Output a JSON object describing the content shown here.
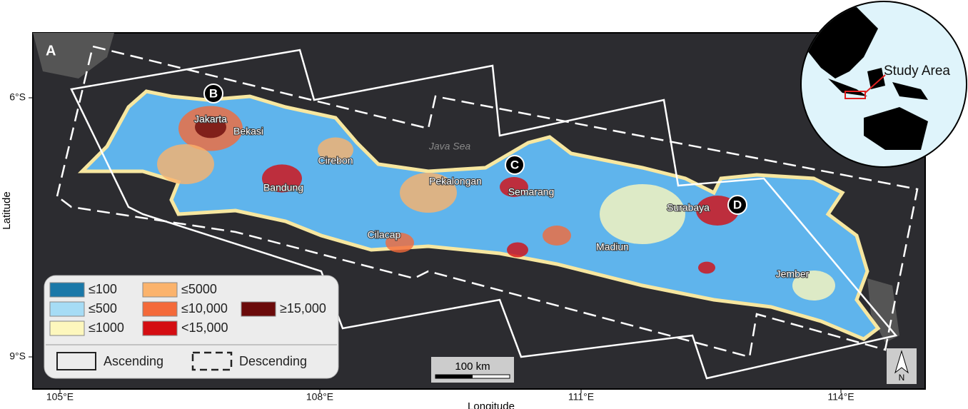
{
  "panel_label": "A",
  "axes": {
    "xlabel": "Longitude",
    "ylabel": "Latitude",
    "xticks": [
      "105°E",
      "108°E",
      "111°E",
      "114°E"
    ],
    "yticks": [
      "6°S",
      "9°S"
    ]
  },
  "sea_label": "Java Sea",
  "places": [
    "Jakarta",
    "Bekasi",
    "Cirebon",
    "Bandung",
    "Pekalongan",
    "Semarang",
    "Cilacap",
    "Madiun",
    "Surabaya",
    "Jember"
  ],
  "markers": [
    "B",
    "C",
    "D"
  ],
  "legend": {
    "classes": [
      {
        "label": "≤100",
        "color": "#1a78a8"
      },
      {
        "label": "≤500",
        "color": "#a6dcf5"
      },
      {
        "label": "≤1000",
        "color": "#fdf7bd"
      },
      {
        "label": "≤5000",
        "color": "#fbb36c"
      },
      {
        "label": "≤10,000",
        "color": "#f46a3a"
      },
      {
        "label": "<15,000",
        "color": "#d40d12"
      },
      {
        "label": "≥15,000",
        "color": "#6b0a0a"
      }
    ],
    "tracks": [
      "Ascending",
      "Descending"
    ]
  },
  "scale_bar": "100 km",
  "north": "N",
  "inset_label": "Study Area"
}
